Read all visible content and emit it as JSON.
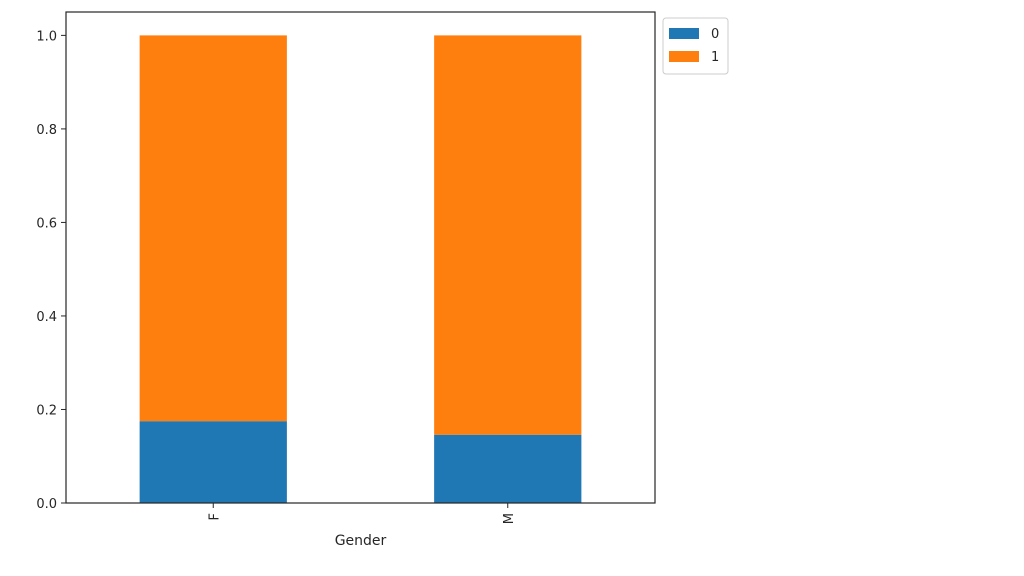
{
  "chart_data": {
    "type": "bar",
    "stacked": true,
    "title": "",
    "xlabel": "Gender",
    "ylabel": "",
    "categories": [
      "F",
      "M"
    ],
    "series": [
      {
        "name": "0",
        "values": [
          0.175,
          0.146
        ],
        "color": "#1f77b4"
      },
      {
        "name": "1",
        "values": [
          0.825,
          0.854
        ],
        "color": "#ff7f0e"
      }
    ],
    "ylim": [
      0,
      1.05
    ],
    "yticks": [
      0.0,
      0.2,
      0.4,
      0.6,
      0.8,
      1.0
    ],
    "ytick_labels": [
      "0.0",
      "0.2",
      "0.4",
      "0.6",
      "0.8",
      "1.0"
    ],
    "legend": {
      "placement": "outside-top-right"
    },
    "grid": false
  }
}
